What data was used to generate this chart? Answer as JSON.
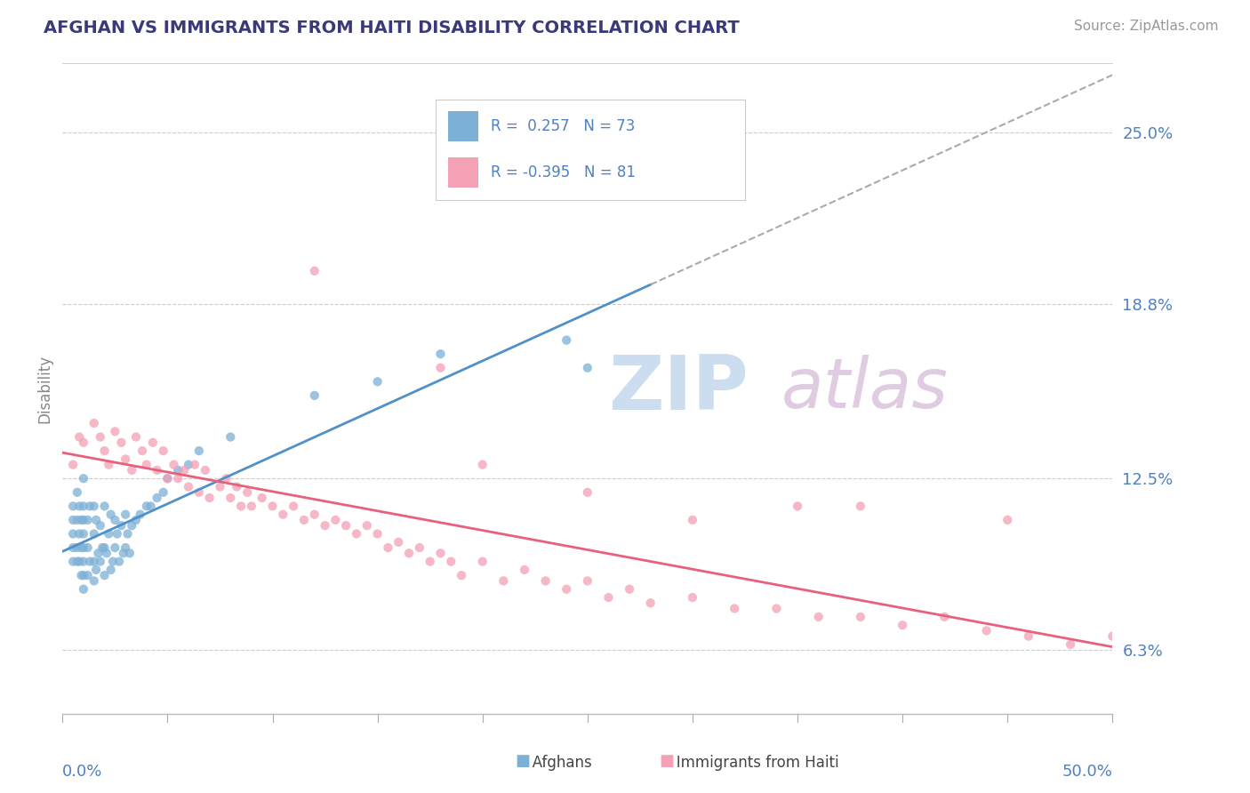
{
  "title": "AFGHAN VS IMMIGRANTS FROM HAITI DISABILITY CORRELATION CHART",
  "source": "Source: ZipAtlas.com",
  "ylabel": "Disability",
  "yticks": [
    0.063,
    0.125,
    0.188,
    0.25
  ],
  "ytick_labels": [
    "6.3%",
    "12.5%",
    "18.8%",
    "25.0%"
  ],
  "xlim": [
    0.0,
    0.5
  ],
  "ylim": [
    0.04,
    0.275
  ],
  "blue_color": "#7db0d5",
  "pink_color": "#f4a0b5",
  "trendline_blue_color": "#5090c8",
  "trendline_pink_color": "#e8607a",
  "trendline_dashed_color": "#aaaaaa",
  "background_color": "#ffffff",
  "grid_color": "#cccccc",
  "title_color": "#3a3a7a",
  "axis_label_color": "#5080c0",
  "watermark_zip_color": "#ccddf0",
  "watermark_atlas_color": "#e0cce0",
  "blue_scatter_x": [
    0.005,
    0.005,
    0.005,
    0.005,
    0.005,
    0.007,
    0.007,
    0.007,
    0.007,
    0.008,
    0.008,
    0.008,
    0.009,
    0.009,
    0.009,
    0.01,
    0.01,
    0.01,
    0.01,
    0.01,
    0.01,
    0.01,
    0.01,
    0.012,
    0.012,
    0.012,
    0.013,
    0.013,
    0.015,
    0.015,
    0.015,
    0.015,
    0.016,
    0.016,
    0.017,
    0.018,
    0.018,
    0.019,
    0.02,
    0.02,
    0.02,
    0.021,
    0.022,
    0.023,
    0.023,
    0.024,
    0.025,
    0.025,
    0.026,
    0.027,
    0.028,
    0.029,
    0.03,
    0.03,
    0.031,
    0.032,
    0.033,
    0.035,
    0.037,
    0.04,
    0.042,
    0.045,
    0.048,
    0.05,
    0.055,
    0.06,
    0.065,
    0.08,
    0.12,
    0.15,
    0.18,
    0.24,
    0.25
  ],
  "blue_scatter_y": [
    0.095,
    0.1,
    0.105,
    0.11,
    0.115,
    0.095,
    0.1,
    0.11,
    0.12,
    0.095,
    0.105,
    0.115,
    0.09,
    0.1,
    0.11,
    0.085,
    0.09,
    0.095,
    0.1,
    0.105,
    0.11,
    0.115,
    0.125,
    0.09,
    0.1,
    0.11,
    0.095,
    0.115,
    0.088,
    0.095,
    0.105,
    0.115,
    0.092,
    0.11,
    0.098,
    0.095,
    0.108,
    0.1,
    0.09,
    0.1,
    0.115,
    0.098,
    0.105,
    0.092,
    0.112,
    0.095,
    0.1,
    0.11,
    0.105,
    0.095,
    0.108,
    0.098,
    0.1,
    0.112,
    0.105,
    0.098,
    0.108,
    0.11,
    0.112,
    0.115,
    0.115,
    0.118,
    0.12,
    0.125,
    0.128,
    0.13,
    0.135,
    0.14,
    0.155,
    0.16,
    0.17,
    0.175,
    0.165
  ],
  "pink_scatter_x": [
    0.005,
    0.008,
    0.01,
    0.015,
    0.018,
    0.02,
    0.022,
    0.025,
    0.028,
    0.03,
    0.033,
    0.035,
    0.038,
    0.04,
    0.043,
    0.045,
    0.048,
    0.05,
    0.053,
    0.055,
    0.058,
    0.06,
    0.063,
    0.065,
    0.068,
    0.07,
    0.075,
    0.078,
    0.08,
    0.083,
    0.085,
    0.088,
    0.09,
    0.095,
    0.1,
    0.105,
    0.11,
    0.115,
    0.12,
    0.125,
    0.13,
    0.135,
    0.14,
    0.145,
    0.15,
    0.155,
    0.16,
    0.165,
    0.17,
    0.175,
    0.18,
    0.185,
    0.19,
    0.2,
    0.21,
    0.22,
    0.23,
    0.24,
    0.25,
    0.26,
    0.27,
    0.28,
    0.3,
    0.32,
    0.34,
    0.36,
    0.38,
    0.4,
    0.42,
    0.44,
    0.46,
    0.48,
    0.5,
    0.3,
    0.18,
    0.25,
    0.2,
    0.38,
    0.35,
    0.45,
    0.12
  ],
  "pink_scatter_y": [
    0.13,
    0.14,
    0.138,
    0.145,
    0.14,
    0.135,
    0.13,
    0.142,
    0.138,
    0.132,
    0.128,
    0.14,
    0.135,
    0.13,
    0.138,
    0.128,
    0.135,
    0.125,
    0.13,
    0.125,
    0.128,
    0.122,
    0.13,
    0.12,
    0.128,
    0.118,
    0.122,
    0.125,
    0.118,
    0.122,
    0.115,
    0.12,
    0.115,
    0.118,
    0.115,
    0.112,
    0.115,
    0.11,
    0.112,
    0.108,
    0.11,
    0.108,
    0.105,
    0.108,
    0.105,
    0.1,
    0.102,
    0.098,
    0.1,
    0.095,
    0.098,
    0.095,
    0.09,
    0.095,
    0.088,
    0.092,
    0.088,
    0.085,
    0.088,
    0.082,
    0.085,
    0.08,
    0.082,
    0.078,
    0.078,
    0.075,
    0.075,
    0.072,
    0.075,
    0.07,
    0.068,
    0.065,
    0.068,
    0.11,
    0.165,
    0.12,
    0.13,
    0.115,
    0.115,
    0.11,
    0.2
  ]
}
